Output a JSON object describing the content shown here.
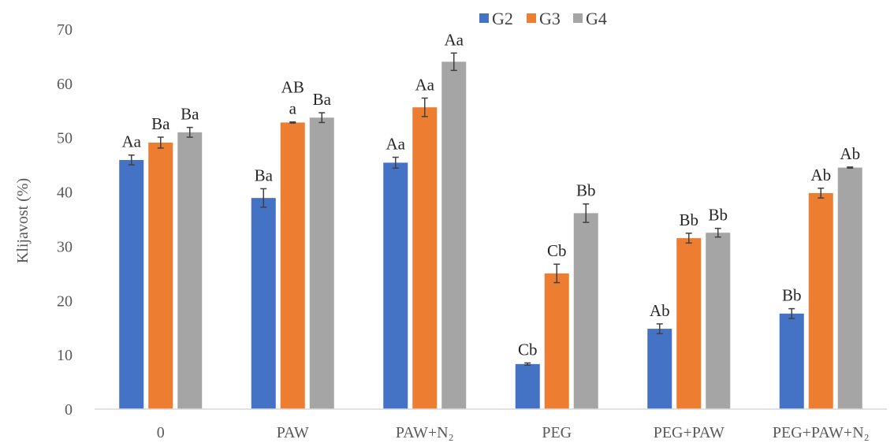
{
  "chart_data": {
    "type": "bar",
    "title": "",
    "xlabel": "",
    "ylabel": "Klijavost (%)",
    "ylim": [
      0,
      70
    ],
    "yticks": [
      0,
      10,
      20,
      30,
      40,
      50,
      60,
      70
    ],
    "grid": false,
    "legend_position": "top-right",
    "categories": [
      "0",
      "PAW",
      "PAW+N₂",
      "PEG",
      "PEG+PAW",
      "PEG+PAW+N₂"
    ],
    "series": [
      {
        "name": "G2",
        "color": "#4472C4",
        "values": [
          45.9,
          38.9,
          45.4,
          8.3,
          14.8,
          17.6
        ],
        "errors": [
          0.9,
          1.7,
          1.0,
          0.2,
          0.9,
          0.9
        ],
        "labels": [
          "Aa",
          "Ba",
          "Aa",
          "Cb",
          "Ab",
          "Bb"
        ]
      },
      {
        "name": "G3",
        "color": "#ED7D31",
        "values": [
          49.1,
          52.8,
          55.6,
          25.0,
          31.5,
          39.8
        ],
        "errors": [
          1.0,
          0.1,
          1.7,
          1.7,
          0.9,
          0.9
        ],
        "labels": [
          "Ba",
          "AB\na",
          "Aa",
          "Cb",
          "Bb",
          "Ab"
        ]
      },
      {
        "name": "G4",
        "color": "#A5A5A5",
        "values": [
          51.0,
          53.7,
          64.0,
          36.1,
          32.5,
          44.5
        ],
        "errors": [
          0.9,
          0.9,
          1.6,
          1.7,
          0.8,
          0.1
        ],
        "labels": [
          "Ba",
          "Ba",
          "Aa",
          "Bb",
          "Bb",
          "Ab"
        ]
      }
    ]
  }
}
